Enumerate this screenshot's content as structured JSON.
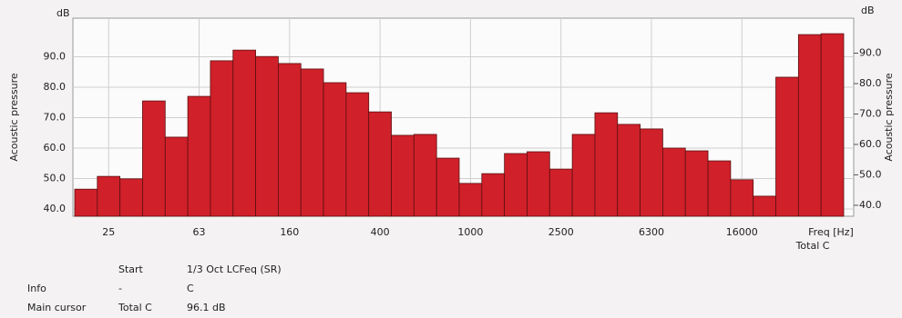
{
  "chart_data": {
    "type": "bar",
    "y_label": "Acoustic pressure",
    "y_unit": "dB",
    "y2_label": "Acoustic pressure",
    "y2_unit": "dB",
    "x_label": "Freq [Hz]",
    "x_sublabel": "Total C",
    "categories": [
      null,
      "25",
      null,
      null,
      null,
      "63",
      null,
      null,
      null,
      "160",
      null,
      null,
      null,
      "400",
      null,
      null,
      null,
      "1000",
      null,
      null,
      null,
      "2500",
      null,
      null,
      null,
      "6300",
      null,
      null,
      null,
      "16000",
      null,
      null,
      null,
      null
    ],
    "values": [
      46.5,
      50.7,
      49.9,
      75.5,
      63.6,
      77,
      88.7,
      92.2,
      90.1,
      87.8,
      86,
      81.5,
      78.2,
      71.9,
      64.2,
      64.5,
      56.7,
      48.4,
      51.6,
      58.2,
      58.8,
      53.1,
      64.5,
      71.6,
      67.8,
      66.3,
      60,
      59.1,
      55.8,
      49.6,
      44.2,
      83.3,
      97.3,
      97.6
    ],
    "color": "#d0202a",
    "edge_color": "#5a1010",
    "ylim": [
      37.6,
      102.7
    ],
    "yticks": [
      {
        "value": 40,
        "label": "40.0"
      },
      {
        "value": 50,
        "label": "50.0"
      },
      {
        "value": 60,
        "label": "60.0"
      },
      {
        "value": 70,
        "label": "70.0"
      },
      {
        "value": 80,
        "label": "80.0"
      },
      {
        "value": 90,
        "label": "90.0"
      }
    ],
    "y2lim": [
      36.4,
      101.5
    ],
    "y2ticks": [
      {
        "value": 40,
        "label": "40.0"
      },
      {
        "value": 50,
        "label": "50.0"
      },
      {
        "value": 60,
        "label": "60.0"
      },
      {
        "value": 70,
        "label": "70.0"
      },
      {
        "value": 80,
        "label": "80.0"
      },
      {
        "value": 90,
        "label": "90.0"
      }
    ],
    "grid": true
  },
  "info": [
    {
      "col1": "Start",
      "col2": "1/3 Oct LCFeq (SR)"
    },
    {
      "label": "Info",
      "col1": "-",
      "col2": "C"
    },
    {
      "label": "Main cursor",
      "col1": "Total C",
      "col2": "96.1 dB"
    }
  ]
}
